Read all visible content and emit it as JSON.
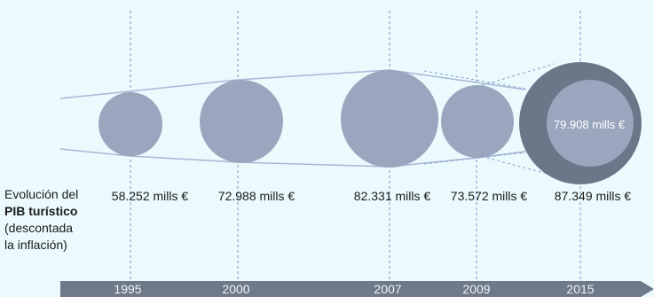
{
  "caption": {
    "line1": "Evolución del",
    "line2_bold": "PIB turístico",
    "line3": "(descontada",
    "line4": "la inflación)"
  },
  "items": [
    {
      "year": "1995",
      "value": "58.252 mills €"
    },
    {
      "year": "2000",
      "value": "72.988 mills €"
    },
    {
      "year": "2007",
      "value": "82.331 mills €"
    },
    {
      "year": "2009",
      "value": "73.572 mills €"
    },
    {
      "year": "2015",
      "value": "87.349 mills €"
    }
  ],
  "inner_value": "79.908 mills €",
  "colors": {
    "background": "#eafafd",
    "bubble": "#99a6bd",
    "outer_ring": "#6b7688",
    "arrow": "#6e7989",
    "guide_line": "#7f95cc"
  }
}
